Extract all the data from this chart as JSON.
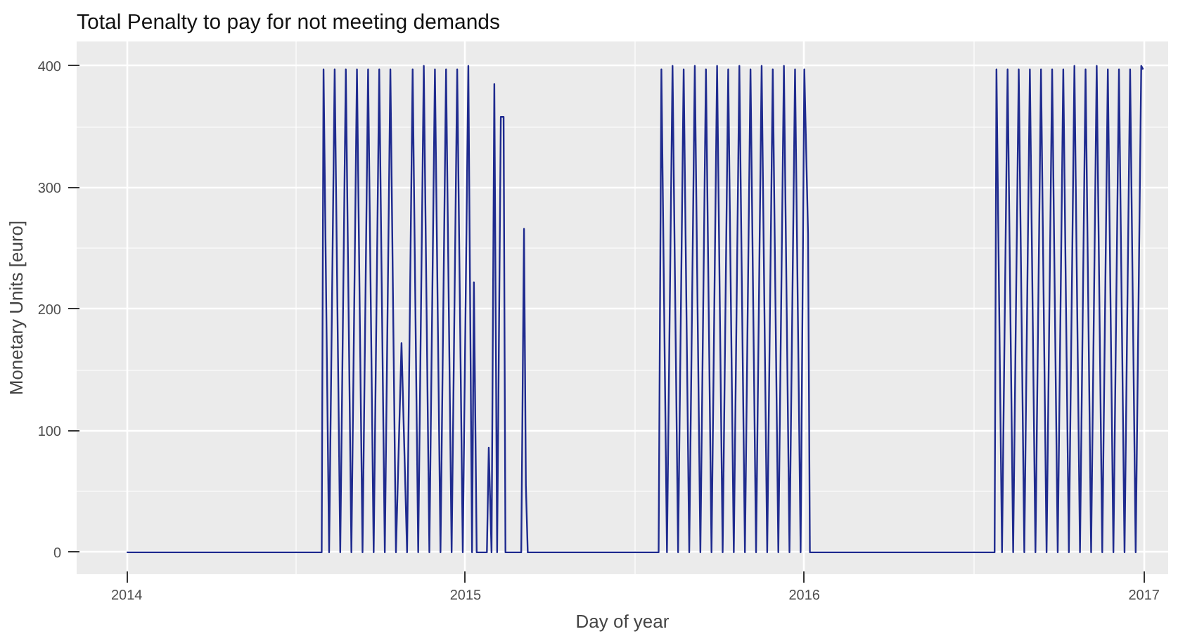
{
  "chart_data": {
    "type": "line",
    "title": "Total Penalty to pay for not meeting demands",
    "xlabel": "Day of year",
    "ylabel": "Monetary Units [euro]",
    "xlim": [
      "2013-11-08",
      "2017-01-27"
    ],
    "ylim": [
      -18,
      420
    ],
    "xticks": [
      {
        "value": "2014-01-01",
        "label": "2014"
      },
      {
        "value": "2015-01-01",
        "label": "2015"
      },
      {
        "value": "2016-01-01",
        "label": "2016"
      },
      {
        "value": "2017-01-01",
        "label": "2017"
      }
    ],
    "yticks": [
      0,
      100,
      200,
      300,
      400
    ],
    "grid": true,
    "marker": "none",
    "line_style": "solid",
    "series": [
      {
        "color": "#1f2b8f",
        "x": [
          "2014-01-01",
          "2014-07-30",
          "2014-08-01",
          "2014-08-07",
          "2014-08-13",
          "2014-08-19",
          "2014-08-25",
          "2014-08-31",
          "2014-09-06",
          "2014-09-12",
          "2014-09-18",
          "2014-09-24",
          "2014-09-30",
          "2014-10-06",
          "2014-10-12",
          "2014-10-18",
          "2014-10-24",
          "2014-10-30",
          "2014-11-05",
          "2014-11-11",
          "2014-11-17",
          "2014-11-23",
          "2014-11-29",
          "2014-12-05",
          "2014-12-11",
          "2014-12-17",
          "2014-12-23",
          "2014-12-29",
          "2015-01-04",
          "2015-01-08",
          "2015-01-10",
          "2015-01-13",
          "2015-01-24",
          "2015-01-26",
          "2015-01-29",
          "2015-02-01",
          "2015-02-04",
          "2015-02-08",
          "2015-02-11",
          "2015-02-13",
          "2015-03-02",
          "2015-03-05",
          "2015-03-07",
          "2015-03-09",
          "2015-07-28",
          "2015-07-31",
          "2015-08-06",
          "2015-08-12",
          "2015-08-18",
          "2015-08-24",
          "2015-08-30",
          "2015-09-05",
          "2015-09-11",
          "2015-09-17",
          "2015-09-23",
          "2015-09-29",
          "2015-10-05",
          "2015-10-11",
          "2015-10-17",
          "2015-10-23",
          "2015-10-29",
          "2015-11-04",
          "2015-11-10",
          "2015-11-16",
          "2015-11-22",
          "2015-11-28",
          "2015-12-04",
          "2015-12-10",
          "2015-12-16",
          "2015-12-22",
          "2015-12-28",
          "2016-01-01",
          "2016-01-03",
          "2016-01-05",
          "2016-01-07",
          "2016-07-24",
          "2016-07-26",
          "2016-08-01",
          "2016-08-07",
          "2016-08-13",
          "2016-08-19",
          "2016-08-25",
          "2016-08-31",
          "2016-09-06",
          "2016-09-12",
          "2016-09-18",
          "2016-09-24",
          "2016-09-30",
          "2016-10-06",
          "2016-10-12",
          "2016-10-18",
          "2016-10-24",
          "2016-10-30",
          "2016-11-05",
          "2016-11-11",
          "2016-11-17",
          "2016-11-23",
          "2016-11-29",
          "2016-12-05",
          "2016-12-11",
          "2016-12-17",
          "2016-12-23",
          "2016-12-29",
          "2016-12-31"
        ],
        "values": [
          0,
          0,
          397,
          0,
          397,
          0,
          397,
          0,
          397,
          0,
          397,
          0,
          397,
          0,
          397,
          0,
          172,
          0,
          397,
          0,
          400,
          0,
          397,
          0,
          397,
          0,
          397,
          0,
          400,
          0,
          222,
          0,
          0,
          86,
          0,
          385,
          0,
          358,
          358,
          0,
          0,
          266,
          55,
          0,
          0,
          397,
          0,
          400,
          0,
          397,
          0,
          400,
          0,
          397,
          0,
          400,
          0,
          397,
          0,
          400,
          0,
          397,
          0,
          400,
          0,
          397,
          0,
          400,
          0,
          397,
          0,
          397,
          330,
          262,
          0,
          0,
          397,
          0,
          397,
          0,
          397,
          0,
          397,
          0,
          397,
          0,
          397,
          0,
          397,
          0,
          400,
          0,
          397,
          0,
          400,
          0,
          397,
          0,
          397,
          0,
          397,
          0,
          400,
          397
        ]
      }
    ]
  }
}
